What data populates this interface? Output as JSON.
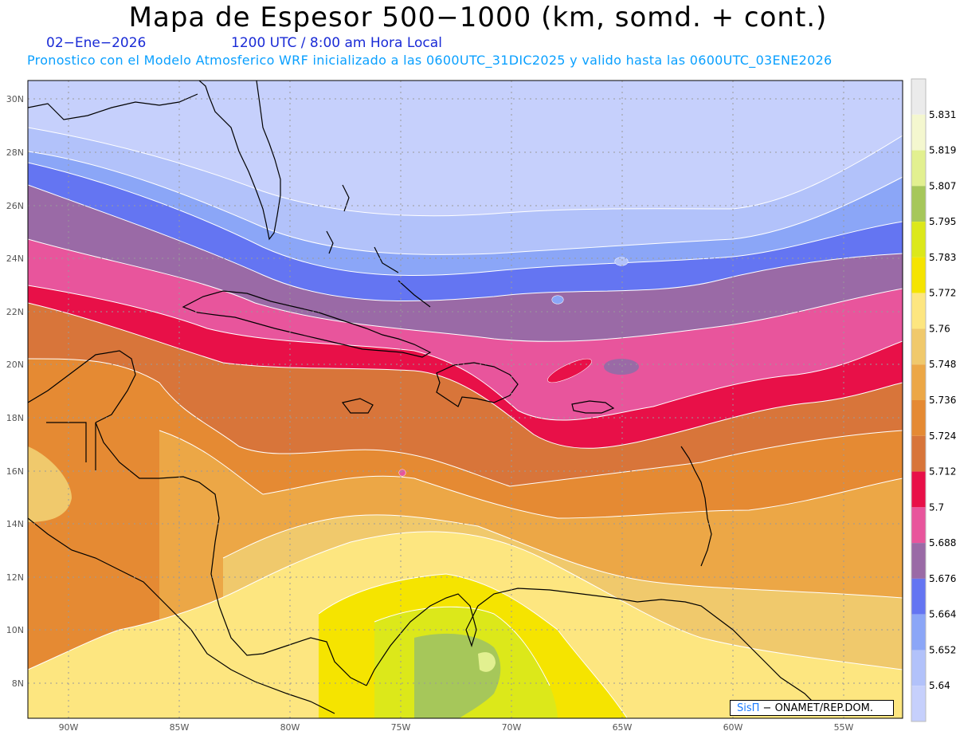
{
  "header": {
    "title": "Mapa de Espesor 500−1000 (km, somd. + cont.)",
    "date": "02−Ene−2026",
    "time": "1200 UTC / 8:00 am Hora Local",
    "forecast_note": "Pronostico con el Modelo Atmosferico WRF inicializado a las 0600UTC_31DIC2025 y valido hasta las  0600UTC_03ENE2026"
  },
  "map": {
    "lon_labels": [
      "90W",
      "85W",
      "80W",
      "75W",
      "70W",
      "65W",
      "60W",
      "55W"
    ],
    "lat_labels": [
      "30N",
      "28N",
      "26N",
      "24N",
      "22N",
      "20N",
      "18N",
      "16N",
      "14N",
      "12N",
      "10N",
      "8N"
    ],
    "colors": {
      "coast": "#000000",
      "grid": "#9a9a9a",
      "contour": "#ffffff"
    }
  },
  "legend": {
    "labels": [
      "5.831",
      "5.819",
      "5.807",
      "5.795",
      "5.783",
      "5.772",
      "5.76",
      "5.748",
      "5.736",
      "5.724",
      "5.712",
      "5.7",
      "5.688",
      "5.676",
      "5.664",
      "5.652",
      "5.64"
    ],
    "colors": [
      "#ebebeb",
      "#f4f7cf",
      "#e2f090",
      "#a6c75a",
      "#dce81a",
      "#f5e400",
      "#fde680",
      "#f0c96c",
      "#eca746",
      "#e58a33",
      "#d8753a",
      "#e81048",
      "#e8559c",
      "#9a6aa6",
      "#6475f2",
      "#8ba6f7",
      "#b2c2fa",
      "#c6d0fc"
    ]
  },
  "credit": {
    "sis": "SisΠ",
    "rest": " − ONAMET/REP.DOM."
  }
}
